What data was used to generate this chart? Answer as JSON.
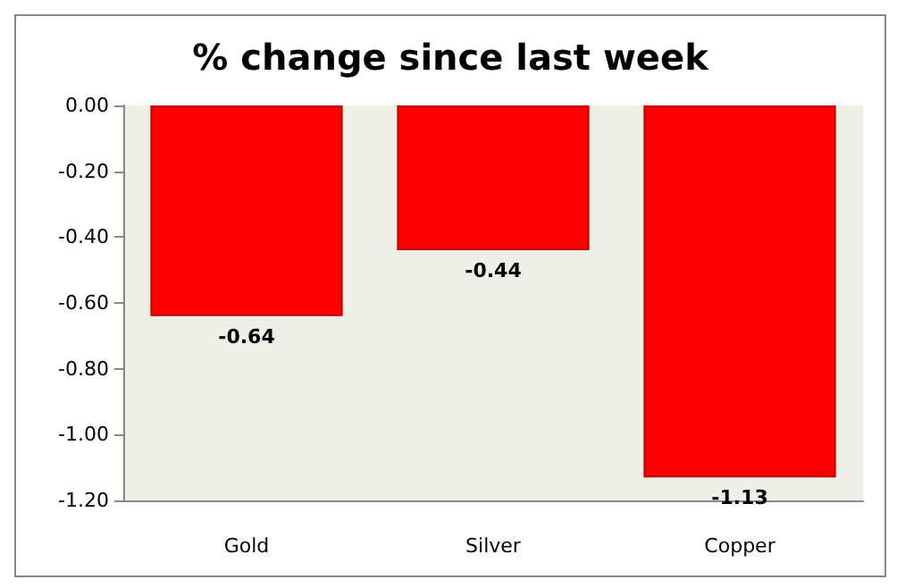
{
  "chart_data": {
    "type": "bar",
    "title": "% change since last week",
    "categories": [
      "Gold",
      "Silver",
      "Copper"
    ],
    "values": [
      -0.64,
      -0.44,
      -1.13
    ],
    "color": "#ff0000",
    "ylim": [
      -1.2,
      0
    ],
    "yticks": [
      {
        "value": 0,
        "label": "0.00"
      },
      {
        "value": -0.2,
        "label": "-0.20"
      },
      {
        "value": -0.4,
        "label": "-0.40"
      },
      {
        "value": -0.6,
        "label": "-0.60"
      },
      {
        "value": -0.8,
        "label": "-0.80"
      },
      {
        "value": -1.0,
        "label": "-1.00"
      },
      {
        "value": -1.2,
        "label": "-1.20"
      }
    ],
    "data_labels": true,
    "grid": false
  }
}
